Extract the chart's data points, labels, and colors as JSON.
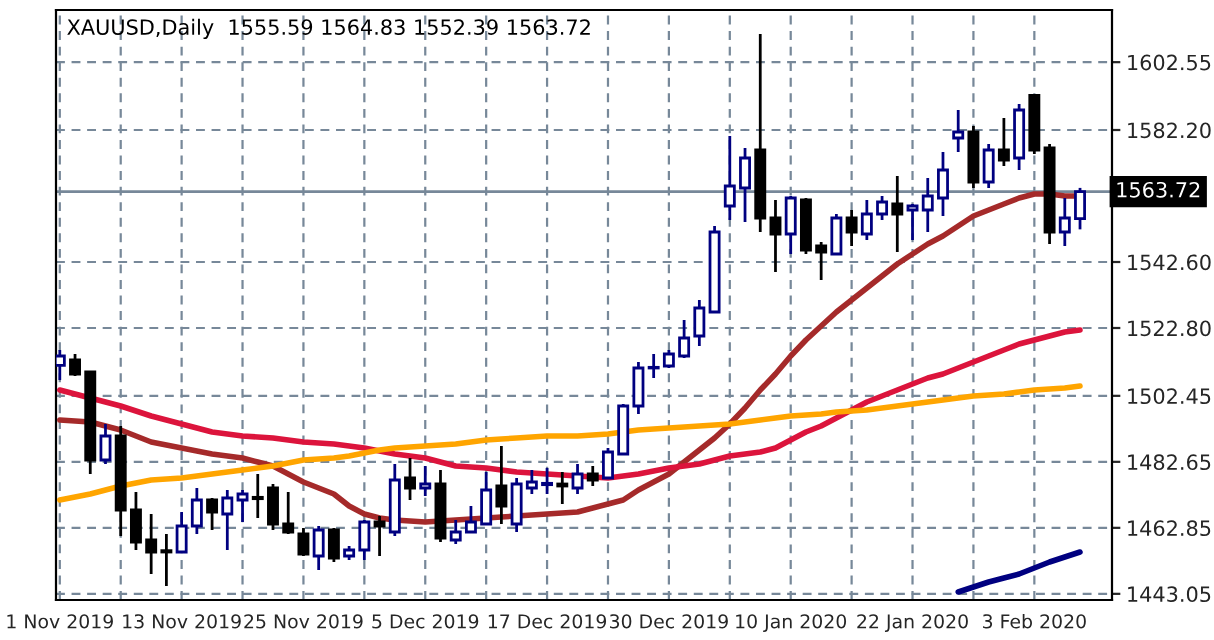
{
  "chart_data": {
    "type": "candlestick",
    "title": "XAUUSD,Daily  1555.59 1564.83 1552.39 1563.72",
    "categories": [
      "1 Nov 2019",
      null,
      null,
      null,
      null,
      null,
      null,
      null,
      "13 Nov 2019",
      null,
      null,
      null,
      null,
      null,
      null,
      null,
      "25 Nov 2019",
      null,
      null,
      null,
      null,
      null,
      null,
      null,
      "5 Dec 2019",
      null,
      null,
      null,
      null,
      null,
      null,
      null,
      "17 Dec 2019",
      null,
      null,
      null,
      null,
      null,
      null,
      null,
      "30 Dec 2019",
      null,
      null,
      null,
      null,
      null,
      null,
      null,
      "10 Jan 2020",
      null,
      null,
      null,
      null,
      null,
      null,
      null,
      "22 Jan 2020",
      null,
      null,
      null,
      null,
      null,
      null,
      null,
      "3 Feb 2020",
      null,
      null,
      null
    ],
    "ohlc": [
      [
        1511.6,
        1516.2,
        1507.2,
        1514.4
      ],
      [
        1513.2,
        1515.0,
        1508.4,
        1509.0
      ],
      [
        1509.6,
        1509.6,
        1479.0,
        1483.2
      ],
      [
        1483.2,
        1494.0,
        1482.0,
        1490.4
      ],
      [
        1490.4,
        1493.4,
        1460.4,
        1468.2
      ],
      [
        1468.2,
        1473.6,
        1456.2,
        1458.6
      ],
      [
        1459.2,
        1467.0,
        1449.0,
        1455.6
      ],
      [
        1456.0,
        1461.0,
        1445.4,
        1455.6
      ],
      [
        1455.6,
        1467.6,
        1455.6,
        1463.4
      ],
      [
        1463.4,
        1474.8,
        1461.0,
        1471.2
      ],
      [
        1471.2,
        1471.8,
        1462.2,
        1467.6
      ],
      [
        1467.0,
        1474.2,
        1456.2,
        1471.8
      ],
      [
        1471.2,
        1474.2,
        1464.6,
        1473.0
      ],
      [
        1472.0,
        1479.0,
        1465.8,
        1471.6
      ],
      [
        1474.8,
        1476.0,
        1462.2,
        1464.0
      ],
      [
        1464.0,
        1473.6,
        1461.0,
        1461.6
      ],
      [
        1461.0,
        1462.8,
        1454.4,
        1455.0
      ],
      [
        1454.4,
        1463.4,
        1450.2,
        1462.2
      ],
      [
        1462.2,
        1462.8,
        1452.6,
        1453.8
      ],
      [
        1454.4,
        1457.4,
        1453.2,
        1456.2
      ],
      [
        1456.2,
        1465.2,
        1453.2,
        1464.6
      ],
      [
        1464.6,
        1466.4,
        1454.4,
        1463.4
      ],
      [
        1461.6,
        1482.0,
        1460.4,
        1477.2
      ],
      [
        1477.8,
        1483.8,
        1471.2,
        1474.8
      ],
      [
        1474.8,
        1481.4,
        1472.4,
        1476.0
      ],
      [
        1476.0,
        1480.2,
        1458.6,
        1459.8
      ],
      [
        1459.2,
        1465.2,
        1458.0,
        1461.6
      ],
      [
        1461.6,
        1469.4,
        1461.6,
        1464.6
      ],
      [
        1464.0,
        1479.6,
        1464.0,
        1474.2
      ],
      [
        1475.4,
        1487.4,
        1464.0,
        1469.4
      ],
      [
        1464.0,
        1477.8,
        1461.6,
        1476.0
      ],
      [
        1474.8,
        1480.2,
        1473.0,
        1476.6
      ],
      [
        1475.8,
        1480.8,
        1473.0,
        1476.2
      ],
      [
        1476.0,
        1479.6,
        1470.0,
        1475.4
      ],
      [
        1474.8,
        1482.0,
        1473.0,
        1479.0
      ],
      [
        1479.0,
        1481.4,
        1475.4,
        1477.2
      ],
      [
        1477.8,
        1486.8,
        1477.8,
        1485.6
      ],
      [
        1485.0,
        1500.0,
        1485.0,
        1499.4
      ],
      [
        1499.4,
        1512.6,
        1497.0,
        1510.8
      ],
      [
        1510.8,
        1515.0,
        1507.8,
        1511.0
      ],
      [
        1511.4,
        1516.2,
        1510.8,
        1515.0
      ],
      [
        1514.4,
        1525.2,
        1513.8,
        1519.8
      ],
      [
        1520.4,
        1531.2,
        1517.4,
        1528.8
      ],
      [
        1527.6,
        1553.4,
        1527.6,
        1551.6
      ],
      [
        1559.4,
        1580.4,
        1555.2,
        1565.4
      ],
      [
        1564.8,
        1576.8,
        1554.6,
        1573.8
      ],
      [
        1576.2,
        1611.0,
        1551.6,
        1555.8
      ],
      [
        1555.8,
        1561.2,
        1539.6,
        1551.0
      ],
      [
        1551.0,
        1562.4,
        1545.0,
        1561.8
      ],
      [
        1561.2,
        1561.8,
        1545.0,
        1546.2
      ],
      [
        1547.4,
        1548.6,
        1537.2,
        1545.6
      ],
      [
        1545.0,
        1557.0,
        1545.0,
        1555.8
      ],
      [
        1555.8,
        1558.2,
        1547.4,
        1551.6
      ],
      [
        1551.0,
        1561.2,
        1549.2,
        1557.0
      ],
      [
        1557.0,
        1562.4,
        1555.2,
        1560.6
      ],
      [
        1560.0,
        1568.4,
        1545.6,
        1557.0
      ],
      [
        1558.2,
        1560.0,
        1549.2,
        1559.4
      ],
      [
        1558.2,
        1567.8,
        1551.6,
        1562.4
      ],
      [
        1561.8,
        1575.6,
        1556.4,
        1570.2
      ],
      [
        1579.8,
        1588.2,
        1575.6,
        1581.6
      ],
      [
        1581.6,
        1583.4,
        1564.8,
        1566.6
      ],
      [
        1566.6,
        1578.0,
        1564.8,
        1576.2
      ],
      [
        1576.2,
        1585.8,
        1571.4,
        1573.2
      ],
      [
        1573.8,
        1590.0,
        1570.2,
        1588.2
      ],
      [
        1592.6,
        1592.6,
        1575.0,
        1576.2
      ],
      [
        1576.8,
        1578.0,
        1548.0,
        1551.6
      ],
      [
        1551.6,
        1561.8,
        1547.4,
        1555.8
      ],
      [
        1555.59,
        1564.83,
        1552.39,
        1563.72
      ]
    ],
    "series": [
      {
        "type": "line",
        "color": "#a52a2a",
        "values": [
          1495.2,
          1494.9,
          1494.6,
          1493.4,
          1492.2,
          1490.4,
          1488.6,
          1487.7,
          1486.8,
          1485.9,
          1485.0,
          1484.4,
          1483.8,
          1482.6,
          1481.4,
          1479.0,
          1476.6,
          1474.8,
          1473.0,
          1469.4,
          1467.0,
          1465.8,
          1465.2,
          1464.9,
          1464.6,
          1464.9,
          1465.2,
          1465.5,
          1465.8,
          1466.1,
          1466.4,
          1466.7,
          1467.0,
          1467.3,
          1467.6,
          1468.8,
          1470.0,
          1471.2,
          1474.2,
          1476.6,
          1479.0,
          1482.6,
          1486.2,
          1489.8,
          1494.0,
          1498.8,
          1504.2,
          1509.0,
          1514.4,
          1519.2,
          1523.4,
          1527.6,
          1531.2,
          1534.8,
          1538.4,
          1542.0,
          1545.0,
          1548.0,
          1550.4,
          1553.4,
          1556.4,
          1558.2,
          1560.0,
          1561.8,
          1563.0,
          1563.0,
          1562.4,
          1562.4
        ]
      },
      {
        "type": "line",
        "color": "#dc143c",
        "values": [
          1504.2,
          1503.0,
          1501.8,
          1500.6,
          1499.4,
          1497.9,
          1496.4,
          1495.2,
          1494.0,
          1492.8,
          1491.6,
          1491.0,
          1490.4,
          1490.1,
          1489.8,
          1489.2,
          1488.6,
          1488.3,
          1488.0,
          1487.4,
          1486.8,
          1485.9,
          1485.0,
          1484.4,
          1483.8,
          1482.6,
          1481.4,
          1481.1,
          1480.8,
          1480.2,
          1479.6,
          1479.3,
          1479.0,
          1478.7,
          1478.4,
          1478.1,
          1477.8,
          1478.4,
          1479.0,
          1479.9,
          1480.8,
          1481.4,
          1482.0,
          1483.2,
          1484.4,
          1485.0,
          1485.6,
          1486.8,
          1489.2,
          1491.6,
          1493.4,
          1495.8,
          1498.2,
          1500.6,
          1502.4,
          1504.2,
          1506.0,
          1507.8,
          1509.0,
          1510.8,
          1512.6,
          1514.4,
          1516.2,
          1518.0,
          1519.2,
          1520.4,
          1521.6,
          1522.2
        ]
      },
      {
        "type": "line",
        "color": "#ffa500",
        "values": [
          1471.2,
          1472.1,
          1473.0,
          1474.2,
          1475.4,
          1476.3,
          1477.2,
          1477.5,
          1477.8,
          1478.4,
          1479.0,
          1479.6,
          1480.2,
          1480.8,
          1481.4,
          1482.3,
          1483.2,
          1483.5,
          1483.8,
          1484.4,
          1485.3,
          1486.2,
          1486.8,
          1487.1,
          1487.4,
          1487.7,
          1488.0,
          1488.6,
          1489.2,
          1489.5,
          1489.8,
          1490.1,
          1490.4,
          1490.4,
          1490.4,
          1490.7,
          1491.0,
          1491.6,
          1492.2,
          1492.5,
          1492.8,
          1493.1,
          1493.4,
          1493.7,
          1494.0,
          1494.6,
          1495.2,
          1495.8,
          1496.4,
          1496.7,
          1497.0,
          1497.6,
          1497.9,
          1498.2,
          1498.8,
          1499.4,
          1500.0,
          1500.6,
          1501.2,
          1501.8,
          1502.4,
          1502.7,
          1503.0,
          1503.6,
          1504.2,
          1504.5,
          1504.8,
          1505.4
        ]
      },
      {
        "type": "line",
        "color": "#000080",
        "values": [
          null,
          null,
          null,
          null,
          null,
          null,
          null,
          null,
          null,
          null,
          null,
          null,
          null,
          null,
          null,
          null,
          null,
          null,
          null,
          null,
          null,
          null,
          null,
          null,
          null,
          null,
          null,
          null,
          null,
          null,
          null,
          null,
          null,
          null,
          null,
          null,
          null,
          null,
          null,
          null,
          null,
          null,
          null,
          null,
          null,
          null,
          null,
          null,
          null,
          null,
          null,
          null,
          null,
          null,
          null,
          null,
          null,
          null,
          null,
          1443.6,
          1445.1,
          1446.6,
          1447.8,
          1449.0,
          1450.8,
          1452.6,
          1454.1,
          1455.6
        ]
      }
    ],
    "ylim": [
      1441.2,
      1618.2
    ],
    "yticks": [
      1443.05,
      1462.85,
      1482.65,
      1502.45,
      {
        "value": 1522.8,
        "label": "1522.80"
      },
      {
        "value": 1542.6,
        "label": "1542.60"
      },
      {
        "value": 1582.2,
        "label": "1582.20"
      },
      1602.55
    ],
    "ref_lines": [
      {
        "axis": "y",
        "value": 1563.72,
        "label": "1563.72",
        "color": "#778899"
      }
    ],
    "grid": true,
    "legend": false
  }
}
